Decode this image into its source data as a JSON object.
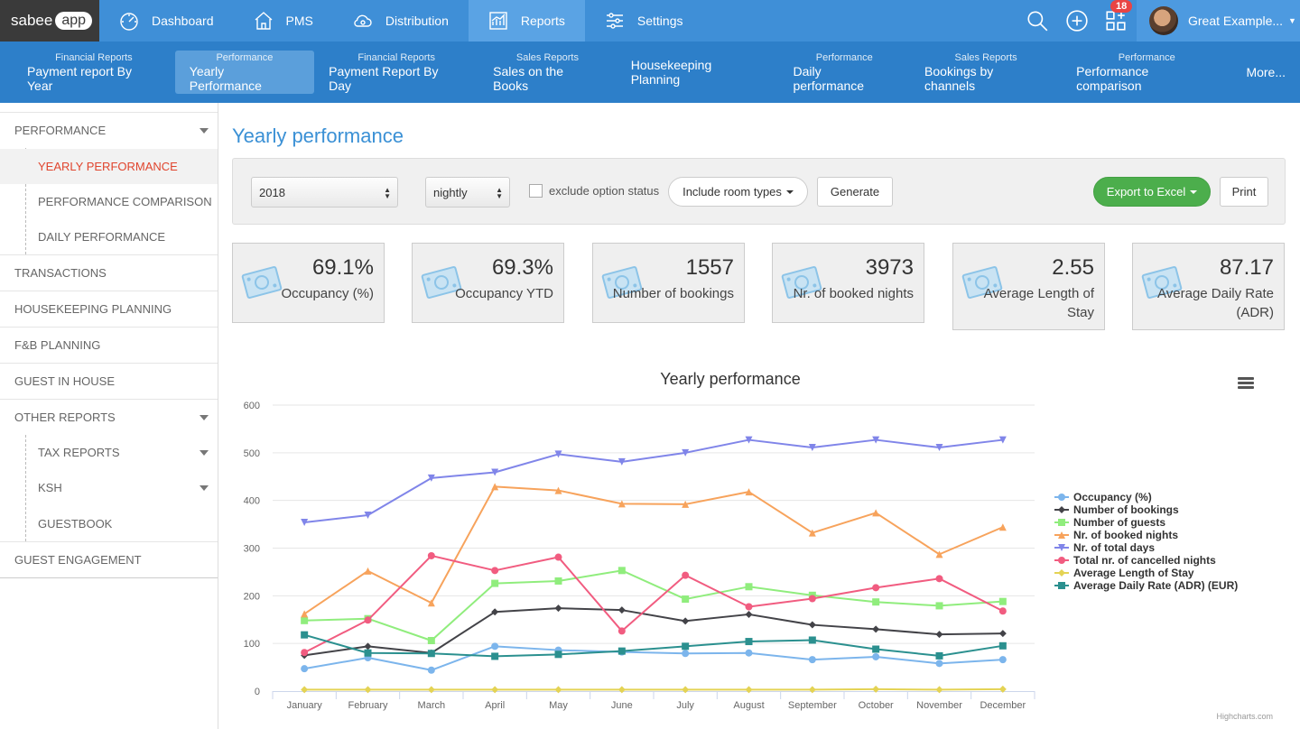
{
  "app": {
    "logo_text": "sabee",
    "logo_badge": "app"
  },
  "topnav": [
    {
      "label": "Dashboard",
      "icon": "dashboard-gauge-icon"
    },
    {
      "label": "PMS",
      "icon": "house-icon"
    },
    {
      "label": "Distribution",
      "icon": "cloud-icon"
    },
    {
      "label": "Reports",
      "icon": "report-chart-icon",
      "active": true
    },
    {
      "label": "Settings",
      "icon": "sliders-icon"
    }
  ],
  "topright": {
    "search_icon": "search-icon",
    "add_icon": "plus-circle-icon",
    "apps_icon": "apps-grid-icon",
    "notification_count": "18",
    "user_name": "Great Example..."
  },
  "subnav": [
    {
      "small": "Financial Reports",
      "big": "Payment report By Year"
    },
    {
      "small": "Performance",
      "big": "Yearly Performance",
      "active": true
    },
    {
      "small": "Financial Reports",
      "big": "Payment Report By Day"
    },
    {
      "small": "Sales Reports",
      "big": "Sales on the Books"
    },
    {
      "small": "",
      "big": "Housekeeping Planning"
    },
    {
      "small": "Performance",
      "big": "Daily performance"
    },
    {
      "small": "Sales Reports",
      "big": "Bookings by channels"
    },
    {
      "small": "Performance",
      "big": "Performance comparison"
    },
    {
      "small": "",
      "big": "More..."
    }
  ],
  "sidebar": {
    "performance": "PERFORMANCE",
    "yearly": "YEARLY PERFORMANCE",
    "comparison": "PERFORMANCE COMPARISON",
    "daily": "DAILY PERFORMANCE",
    "transactions": "TRANSACTIONS",
    "housekeeping": "HOUSEKEEPING PLANNING",
    "fb": "F&B PLANNING",
    "guest_in_house": "GUEST IN HOUSE",
    "other_reports": "OTHER REPORTS",
    "tax_reports": "TAX REPORTS",
    "ksh": "KSH",
    "guestbook": "GUESTBOOK",
    "guest_engagement": "GUEST ENGAGEMENT"
  },
  "page": {
    "title": "Yearly performance"
  },
  "filters": {
    "year": "2018",
    "period": "nightly",
    "exclude_label": "exclude option status",
    "room_types": "Include room types",
    "generate": "Generate",
    "export": "Export to Excel",
    "print": "Print"
  },
  "stats": [
    {
      "value": "69.1%",
      "label": "Occupancy (%)",
      "icon": "money-bill-icon"
    },
    {
      "value": "69.3%",
      "label": "Occupancy YTD",
      "icon": "money-bill-icon"
    },
    {
      "value": "1557",
      "label": "Number of bookings",
      "icon": "money-bill-icon"
    },
    {
      "value": "3973",
      "label": "Nr. of booked nights",
      "icon": "money-bill-icon"
    },
    {
      "value": "2.55",
      "label": "Average Length of Stay",
      "icon": "money-bill-icon"
    },
    {
      "value": "87.17",
      "label": "Average Daily Rate (ADR)",
      "icon": "money-bill-icon"
    }
  ],
  "chart_credit": "Highcharts.com",
  "chart_data": {
    "type": "line",
    "title": "Yearly performance",
    "categories": [
      "January",
      "February",
      "March",
      "April",
      "May",
      "June",
      "July",
      "August",
      "September",
      "October",
      "November",
      "December"
    ],
    "ylim": [
      0,
      600
    ],
    "yticks": [
      0,
      100,
      200,
      300,
      400,
      500,
      600
    ],
    "grid": true,
    "legend_position": "right",
    "series": [
      {
        "name": "Occupancy (%)",
        "color": "#7cb5ec",
        "marker": "circle",
        "values": [
          47,
          70,
          44,
          94,
          86,
          82,
          79,
          80,
          66,
          72,
          58,
          66
        ]
      },
      {
        "name": "Number of bookings",
        "color": "#434348",
        "marker": "diamond",
        "values": [
          75,
          94,
          80,
          166,
          174,
          170,
          147,
          161,
          139,
          130,
          119,
          121
        ]
      },
      {
        "name": "Number of guests",
        "color": "#90ed7d",
        "marker": "square",
        "values": [
          148,
          152,
          106,
          226,
          231,
          253,
          193,
          219,
          201,
          187,
          179,
          188
        ]
      },
      {
        "name": "Nr. of booked nights",
        "color": "#f7a35c",
        "marker": "triangle",
        "values": [
          162,
          252,
          185,
          429,
          421,
          393,
          392,
          418,
          332,
          374,
          287,
          344
        ]
      },
      {
        "name": "Nr. of total days",
        "color": "#8085e9",
        "marker": "triangle-down",
        "values": [
          354,
          369,
          447,
          459,
          497,
          481,
          500,
          527,
          511,
          527,
          511,
          527
        ]
      },
      {
        "name": "Total nr. of cancelled nights",
        "color": "#f15c80",
        "marker": "circle",
        "values": [
          81,
          149,
          284,
          253,
          281,
          126,
          243,
          177,
          194,
          217,
          236,
          168
        ]
      },
      {
        "name": "Average Length of Stay",
        "color": "#e4d354",
        "marker": "diamond",
        "values": [
          3,
          3,
          3,
          3,
          3,
          3,
          3,
          3,
          3,
          4,
          3,
          4
        ]
      },
      {
        "name": "Average Daily Rate (ADR) (EUR)",
        "color": "#2b908f",
        "marker": "square",
        "values": [
          118,
          80,
          79,
          73,
          77,
          84,
          94,
          104,
          107,
          88,
          74,
          95
        ]
      }
    ]
  }
}
